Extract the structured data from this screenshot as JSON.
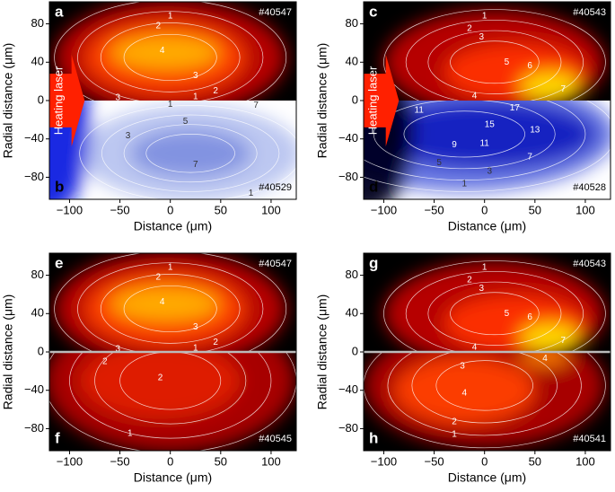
{
  "chart_data": [
    {
      "type": "heatmap",
      "xlabel": "Distance (μm)",
      "ylabel": "Radial distance (μm)",
      "xlim": [
        -120,
        125
      ],
      "ylim": [
        -103,
        103
      ],
      "xticks": [
        {
          "value": -100,
          "label": "−100"
        },
        {
          "value": -50,
          "label": "−50"
        },
        0,
        50,
        100
      ],
      "yticks": [
        {
          "value": -80,
          "label": "−80"
        },
        {
          "value": -40,
          "label": "−40"
        },
        0,
        40,
        80
      ],
      "annotation": "Heating laser",
      "top": {
        "panel": "a",
        "shot": "#40547",
        "colormap": "hot",
        "contour_labels": [
          {
            "value": 1,
            "x": 0,
            "y": 88
          },
          {
            "value": 2,
            "x": -12,
            "y": 78
          },
          {
            "value": 4,
            "x": -8,
            "y": 52
          },
          {
            "value": 3,
            "x": 25,
            "y": 26
          },
          {
            "value": 2,
            "x": 45,
            "y": 10
          },
          {
            "value": 1,
            "x": 25,
            "y": 4
          },
          {
            "value": 3,
            "x": -52,
            "y": 3
          }
        ]
      },
      "bottom": {
        "panel": "b",
        "shot": "#40529",
        "colormap": "blue",
        "contour_labels": [
          {
            "value": 1,
            "x": 0,
            "y": -4
          },
          {
            "value": 7,
            "x": 85,
            "y": -5
          },
          {
            "value": 5,
            "x": 15,
            "y": -22
          },
          {
            "value": 3,
            "x": -42,
            "y": -37
          },
          {
            "value": 7,
            "x": 25,
            "y": -67
          },
          {
            "value": 1,
            "x": 80,
            "y": -97
          }
        ]
      }
    },
    {
      "type": "heatmap",
      "xlabel": "Distance (μm)",
      "ylabel": "Radial distance (μm)",
      "xlim": [
        -120,
        125
      ],
      "ylim": [
        -103,
        103
      ],
      "xticks": [
        {
          "value": -100,
          "label": "−100"
        },
        {
          "value": -50,
          "label": "−50"
        },
        0,
        50,
        100
      ],
      "yticks": [
        {
          "value": -80,
          "label": "−80"
        },
        {
          "value": -40,
          "label": "−40"
        },
        0,
        40,
        80
      ],
      "annotation": "Heating laser",
      "top": {
        "panel": "c",
        "shot": "#40543",
        "colormap": "hot",
        "contour_labels": [
          {
            "value": 1,
            "x": 0,
            "y": 88
          },
          {
            "value": 2,
            "x": -15,
            "y": 75
          },
          {
            "value": 3,
            "x": -3,
            "y": 66
          },
          {
            "value": 5,
            "x": 22,
            "y": 40
          },
          {
            "value": 6,
            "x": 45,
            "y": 36
          },
          {
            "value": 7,
            "x": 78,
            "y": 12
          },
          {
            "value": 4,
            "x": -10,
            "y": 5
          }
        ]
      },
      "bottom": {
        "panel": "d",
        "shot": "#40528",
        "colormap": "blue",
        "contour_labels": [
          {
            "value": 11,
            "x": -65,
            "y": -10
          },
          {
            "value": 17,
            "x": 30,
            "y": -8
          },
          {
            "value": 15,
            "x": 5,
            "y": -25
          },
          {
            "value": 13,
            "x": 50,
            "y": -31
          },
          {
            "value": 9,
            "x": -30,
            "y": -46
          },
          {
            "value": 11,
            "x": 0,
            "y": -45
          },
          {
            "value": 7,
            "x": 45,
            "y": -59
          },
          {
            "value": 5,
            "x": -45,
            "y": -65
          },
          {
            "value": 3,
            "x": 5,
            "y": -74
          },
          {
            "value": 1,
            "x": -20,
            "y": -87
          }
        ]
      }
    },
    {
      "type": "heatmap",
      "xlabel": "Distance (μm)",
      "ylabel": "Radial distance (μm)",
      "xlim": [
        -120,
        125
      ],
      "ylim": [
        -103,
        103
      ],
      "xticks": [
        {
          "value": -100,
          "label": "−100"
        },
        {
          "value": -50,
          "label": "−50"
        },
        0,
        50,
        100
      ],
      "yticks": [
        {
          "value": -80,
          "label": "−80"
        },
        {
          "value": -40,
          "label": "−40"
        },
        0,
        40,
        80
      ],
      "top": {
        "panel": "e",
        "shot": "#40547",
        "colormap": "hot",
        "contour_labels": [
          {
            "value": 1,
            "x": 0,
            "y": 88
          },
          {
            "value": 2,
            "x": -12,
            "y": 78
          },
          {
            "value": 4,
            "x": -8,
            "y": 52
          },
          {
            "value": 3,
            "x": 25,
            "y": 26
          },
          {
            "value": 2,
            "x": 45,
            "y": 10
          },
          {
            "value": 1,
            "x": 25,
            "y": 4
          },
          {
            "value": 3,
            "x": -52,
            "y": 3
          }
        ]
      },
      "bottom": {
        "panel": "f",
        "shot": "#40545",
        "colormap": "hot",
        "contour_labels": [
          {
            "value": 2,
            "x": -65,
            "y": -10
          },
          {
            "value": 2,
            "x": -10,
            "y": -27
          },
          {
            "value": 1,
            "x": -40,
            "y": -85
          }
        ]
      }
    },
    {
      "type": "heatmap",
      "xlabel": "Distance (μm)",
      "ylabel": "Radial distance (μm)",
      "xlim": [
        -120,
        125
      ],
      "ylim": [
        -103,
        103
      ],
      "xticks": [
        {
          "value": -100,
          "label": "−100"
        },
        {
          "value": -50,
          "label": "−50"
        },
        0,
        50,
        100
      ],
      "yticks": [
        {
          "value": -80,
          "label": "−80"
        },
        {
          "value": -40,
          "label": "−40"
        },
        0,
        40,
        80
      ],
      "top": {
        "panel": "g",
        "shot": "#40543",
        "colormap": "hot",
        "contour_labels": [
          {
            "value": 1,
            "x": 0,
            "y": 88
          },
          {
            "value": 2,
            "x": -15,
            "y": 75
          },
          {
            "value": 3,
            "x": -3,
            "y": 66
          },
          {
            "value": 5,
            "x": 22,
            "y": 40
          },
          {
            "value": 6,
            "x": 45,
            "y": 36
          },
          {
            "value": 7,
            "x": 78,
            "y": 12
          },
          {
            "value": 4,
            "x": -10,
            "y": 5
          }
        ]
      },
      "bottom": {
        "panel": "h",
        "shot": "#40541",
        "colormap": "hot",
        "contour_labels": [
          {
            "value": 4,
            "x": 60,
            "y": -7
          },
          {
            "value": 3,
            "x": -22,
            "y": -15
          },
          {
            "value": 4,
            "x": -20,
            "y": -43
          },
          {
            "value": 2,
            "x": -30,
            "y": -73
          },
          {
            "value": 1,
            "x": -30,
            "y": -86
          }
        ]
      }
    }
  ]
}
